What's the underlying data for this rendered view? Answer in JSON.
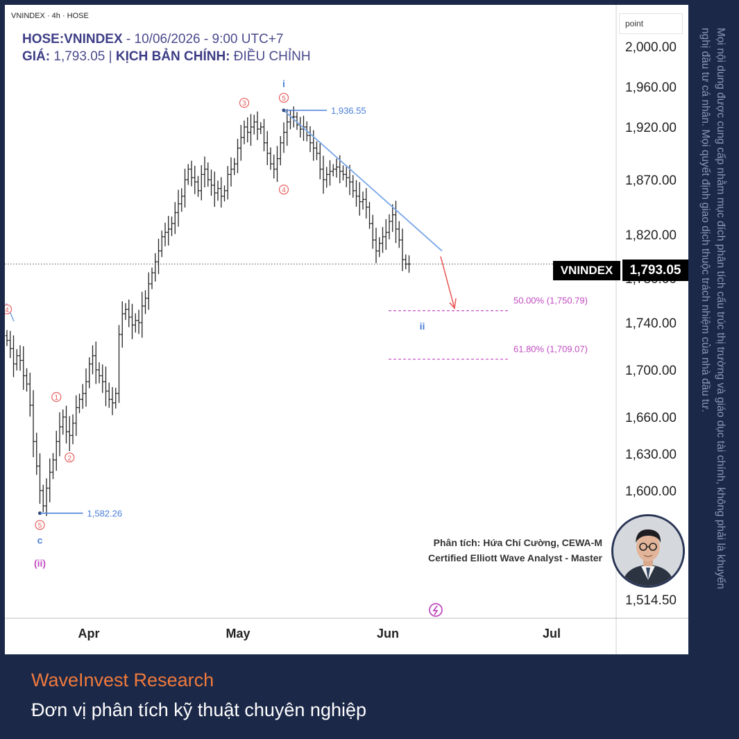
{
  "header": {
    "small": "VNINDEX · 4h · HOSE",
    "symbol": "HOSE:VNINDEX",
    "datetime": " - 10/06/2026 - 9:00 UTC+7",
    "price_label": "GIÁ:",
    "price_value": " 1,793.05 | ",
    "scenario_label": "KỊCH BẢN CHÍNH:",
    "scenario_value": " ĐIỀU CHỈNH"
  },
  "axis": {
    "unit_label": "point"
  },
  "current_price": {
    "symbol_tag": "VNINDEX",
    "price_tag": "1,793.05"
  },
  "credit": {
    "line1": "Phân tích: Hứa Chí Cường, CEWA-M",
    "line2": "Certified Elliott Wave Analyst - Master"
  },
  "disclaimer": {
    "line1": "Mọi nội dung được cung cấp nhằm mục đích phân tích cấu trúc thị trường và giáo dục tài chính, không phải là khuyến",
    "line2": "nghị đầu tư cá nhân. Mọi quyết định giao dịch thuộc trách nhiệm của nhà đầu tư."
  },
  "brand": {
    "name": "WaveInvest Research",
    "tagline": "Đơn vị phân tích kỹ thuật chuyên nghiệp"
  },
  "colors": {
    "frame": "#1b2848",
    "brand_orange": "#f07a3c",
    "wave_red": "#e85c5c",
    "wave_blue": "#4a7fd8",
    "fib_magenta": "#c04bc0",
    "trendline": "#79a7e8"
  },
  "chart_data": {
    "type": "ohlc",
    "symbol": "VNINDEX",
    "timeframe": "4h",
    "y_ticks": [
      2000.0,
      1960.0,
      1920.0,
      1870.0,
      1820.0,
      1780.0,
      1740.0,
      1700.0,
      1660.0,
      1630.0,
      1600.0,
      1514.5
    ],
    "y_tick_labels": [
      "2,000.00",
      "1,960.00",
      "1,920.00",
      "1,870.00",
      "1,820.00",
      "1,780.00",
      "1,740.00",
      "1,700.00",
      "1,660.00",
      "1,630.00",
      "1,600.00",
      "1,514.50"
    ],
    "x_labels": [
      "Apr",
      "May",
      "Jun",
      "Jul"
    ],
    "last_price": 1793.05,
    "closes": [
      1725,
      1718,
      1705,
      1712,
      1708,
      1695,
      1688,
      1670,
      1640,
      1620,
      1600,
      1588,
      1602,
      1615,
      1625,
      1640,
      1652,
      1660,
      1648,
      1645,
      1655,
      1668,
      1675,
      1680,
      1690,
      1705,
      1712,
      1700,
      1695,
      1690,
      1682,
      1675,
      1672,
      1680,
      1730,
      1748,
      1752,
      1745,
      1738,
      1742,
      1740,
      1755,
      1762,
      1775,
      1785,
      1795,
      1805,
      1818,
      1822,
      1825,
      1830,
      1840,
      1848,
      1855,
      1870,
      1880,
      1872,
      1868,
      1860,
      1875,
      1880,
      1870,
      1865,
      1858,
      1862,
      1855,
      1860,
      1875,
      1880,
      1885,
      1900,
      1910,
      1920,
      1915,
      1920,
      1925,
      1918,
      1920,
      1905,
      1895,
      1885,
      1880,
      1890,
      1905,
      1915,
      1925,
      1930,
      1930,
      1922,
      1918,
      1920,
      1912,
      1905,
      1900,
      1895,
      1880,
      1870,
      1875,
      1878,
      1880,
      1882,
      1878,
      1875,
      1872,
      1868,
      1860,
      1855,
      1850,
      1852,
      1845,
      1830,
      1815,
      1805,
      1812,
      1818,
      1822,
      1832,
      1838,
      1825,
      1815,
      1797,
      1793,
      1793
    ],
    "wave_labels": [
      {
        "text": "4",
        "bar": 0,
        "price": 1752,
        "color": "red"
      },
      {
        "text": "1",
        "bar": 15,
        "price": 1677,
        "color": "red"
      },
      {
        "text": "2",
        "bar": 19,
        "price": 1627,
        "color": "red"
      },
      {
        "text": "3",
        "bar": 72,
        "price": 1944,
        "color": "red"
      },
      {
        "text": "4",
        "bar": 84,
        "price": 1861,
        "color": "red"
      },
      {
        "text": "5",
        "bar": 84,
        "price": 1949,
        "color": "red"
      },
      {
        "text": "i",
        "bar": 84,
        "price": 1963,
        "color": "blue"
      },
      {
        "text": "5",
        "bar": 10,
        "price": 1573,
        "color": "red"
      },
      {
        "text": "c",
        "bar": 10,
        "price": 1561,
        "color": "blue"
      },
      {
        "text": "(ii)",
        "bar": 10,
        "price": 1543,
        "color": "magenta"
      },
      {
        "text": "ii",
        "bar": 126,
        "price": 1737,
        "color": "blue"
      }
    ],
    "price_annotations": [
      {
        "label": "1,936.55",
        "price": 1936.55,
        "from_bar": 84
      },
      {
        "label": "1,582.26",
        "price": 1582.26,
        "from_bar": 10
      }
    ],
    "fib_levels": [
      {
        "label": "50.00% (1,750.79)",
        "price": 1750.79
      },
      {
        "label": "61.80% (1,709.07)",
        "price": 1709.07
      }
    ],
    "trendline": {
      "from_bar": 84,
      "from_price": 1936.55,
      "to_bar": 132,
      "to_price": 1805
    }
  }
}
